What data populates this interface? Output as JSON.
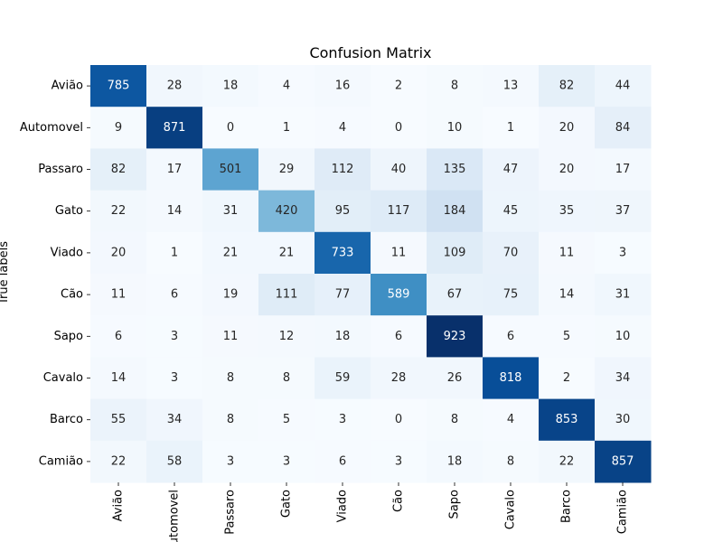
{
  "chart_data": {
    "type": "heatmap",
    "title": "Confusion Matrix",
    "xlabel": "",
    "ylabel": "True labels",
    "colormap": "Blues",
    "color_scale": {
      "min": 0,
      "max": 923
    },
    "colorbar": false,
    "grid": false,
    "x_categories": [
      "Avião",
      "Automovel",
      "Passaro",
      "Gato",
      "Viado",
      "Cão",
      "Sapo",
      "Cavalo",
      "Barco",
      "Camião"
    ],
    "y_categories": [
      "Avião",
      "Automovel",
      "Passaro",
      "Gato",
      "Viado",
      "Cão",
      "Sapo",
      "Cavalo",
      "Barco",
      "Camião"
    ],
    "values": [
      [
        785,
        28,
        18,
        4,
        16,
        2,
        8,
        13,
        82,
        44
      ],
      [
        9,
        871,
        0,
        1,
        4,
        0,
        10,
        1,
        20,
        84
      ],
      [
        82,
        17,
        501,
        29,
        112,
        40,
        135,
        47,
        20,
        17
      ],
      [
        22,
        14,
        31,
        420,
        95,
        117,
        184,
        45,
        35,
        37
      ],
      [
        20,
        1,
        21,
        21,
        733,
        11,
        109,
        70,
        11,
        3
      ],
      [
        11,
        6,
        19,
        111,
        77,
        589,
        67,
        75,
        14,
        31
      ],
      [
        6,
        3,
        11,
        12,
        18,
        6,
        923,
        6,
        5,
        10
      ],
      [
        14,
        3,
        8,
        8,
        59,
        28,
        26,
        818,
        2,
        34
      ],
      [
        55,
        34,
        8,
        5,
        3,
        0,
        8,
        4,
        853,
        30
      ],
      [
        22,
        58,
        3,
        3,
        6,
        3,
        18,
        8,
        22,
        857
      ]
    ]
  }
}
